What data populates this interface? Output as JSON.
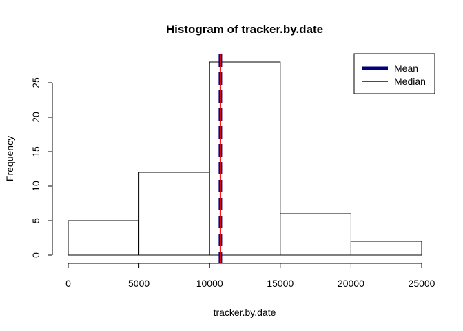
{
  "chart_data": {
    "type": "bar",
    "subtype": "histogram",
    "title": "Histogram of tracker.by.date",
    "xlabel": "tracker.by.date",
    "ylabel": "Frequency",
    "bins": [
      {
        "start": 0,
        "end": 5000,
        "count": 5
      },
      {
        "start": 5000,
        "end": 10000,
        "count": 12
      },
      {
        "start": 10000,
        "end": 15000,
        "count": 28
      },
      {
        "start": 15000,
        "end": 20000,
        "count": 6
      },
      {
        "start": 20000,
        "end": 25000,
        "count": 2
      }
    ],
    "xlim": [
      0,
      25000
    ],
    "ylim": [
      0,
      28
    ],
    "xticks": [
      0,
      5000,
      10000,
      15000,
      20000,
      25000
    ],
    "yticks": [
      0,
      5,
      10,
      15,
      20,
      25
    ],
    "bar_fill": "#ffffff",
    "bar_stroke": "#000000",
    "reference_lines": [
      {
        "name": "Mean",
        "value": 10766,
        "color": "#00007f",
        "style": "dashed"
      },
      {
        "name": "Median",
        "value": 10765,
        "color": "#ff0000",
        "style": "solid"
      }
    ],
    "legend": {
      "position": "top-right",
      "entries": [
        {
          "label": "Mean",
          "color": "#00007f",
          "style": "thick"
        },
        {
          "label": "Median",
          "color": "#ff0000",
          "style": "thin"
        }
      ]
    },
    "grid": false
  }
}
